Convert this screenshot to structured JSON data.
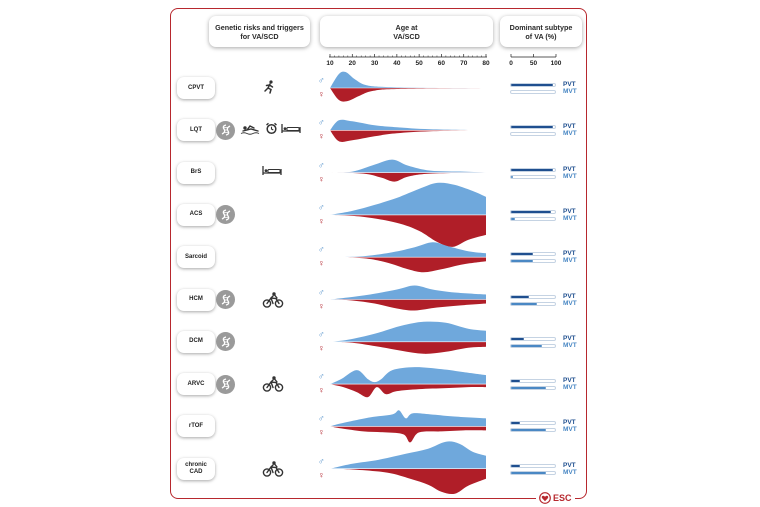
{
  "headers": {
    "genetic_line1": "Genetic risks and triggers",
    "genetic_line2": "for VA/SCD",
    "age_line1": "Age at",
    "age_line2": "VA/SCD",
    "subtype_line1": "Dominant subtype",
    "subtype_line2": "of VA (%)"
  },
  "age_axis": {
    "ticks": [
      "10",
      "20",
      "30",
      "40",
      "50",
      "60",
      "70",
      "80"
    ]
  },
  "subtype_axis": {
    "ticks": [
      "0",
      "50",
      "100"
    ]
  },
  "symbols": {
    "male": "♂",
    "female": "♀"
  },
  "bar_labels": {
    "pvt": "PVT",
    "mvt": "MVT"
  },
  "colors": {
    "male": "#6fa8dc",
    "female": "#b01e28",
    "pvt": "#1f4f8f",
    "mvt": "#4a88c4",
    "frame": "#b7282e"
  },
  "rows": [
    {
      "line1": "CPVT",
      "line2": "",
      "dna": false,
      "triggers": [
        "running-icon"
      ],
      "pvt": 95,
      "mvt": 0,
      "male": [
        [
          10,
          0
        ],
        [
          14,
          14
        ],
        [
          17,
          16
        ],
        [
          21,
          9
        ],
        [
          26,
          3
        ],
        [
          35,
          1
        ],
        [
          60,
          0
        ],
        [
          80,
          0
        ]
      ],
      "female": [
        [
          10,
          0
        ],
        [
          14,
          12
        ],
        [
          18,
          13
        ],
        [
          23,
          8
        ],
        [
          29,
          3
        ],
        [
          40,
          1
        ],
        [
          80,
          0
        ]
      ]
    },
    {
      "line1": "LQT",
      "line2": "",
      "dna": true,
      "triggers": [
        "swimmer-icon",
        "alarm-clock-icon",
        "bed-icon"
      ],
      "pvt": 95,
      "mvt": 0,
      "male": [
        [
          10,
          0
        ],
        [
          14,
          10
        ],
        [
          20,
          9
        ],
        [
          30,
          5
        ],
        [
          40,
          3
        ],
        [
          55,
          1
        ],
        [
          80,
          0
        ]
      ],
      "female": [
        [
          10,
          0
        ],
        [
          14,
          11
        ],
        [
          20,
          10
        ],
        [
          30,
          6
        ],
        [
          40,
          3
        ],
        [
          55,
          1
        ],
        [
          80,
          0
        ]
      ]
    },
    {
      "line1": "BrS",
      "line2": "",
      "dna": false,
      "triggers": [
        "bed-icon"
      ],
      "pvt": 95,
      "mvt": 5,
      "male": [
        [
          10,
          0
        ],
        [
          20,
          1
        ],
        [
          30,
          8
        ],
        [
          38,
          13
        ],
        [
          45,
          7
        ],
        [
          55,
          2
        ],
        [
          70,
          1
        ],
        [
          80,
          0
        ]
      ],
      "female": [
        [
          10,
          0
        ],
        [
          25,
          1
        ],
        [
          33,
          5
        ],
        [
          39,
          9
        ],
        [
          45,
          4
        ],
        [
          55,
          1
        ],
        [
          80,
          0
        ]
      ]
    },
    {
      "line1": "ACS",
      "line2": "",
      "dna": true,
      "triggers": [],
      "pvt": 90,
      "mvt": 8,
      "male": [
        [
          10,
          0
        ],
        [
          20,
          4
        ],
        [
          30,
          10
        ],
        [
          40,
          17
        ],
        [
          50,
          26
        ],
        [
          58,
          32
        ],
        [
          66,
          30
        ],
        [
          75,
          23
        ],
        [
          80,
          18
        ]
      ],
      "female": [
        [
          10,
          0
        ],
        [
          25,
          2
        ],
        [
          40,
          8
        ],
        [
          50,
          16
        ],
        [
          58,
          27
        ],
        [
          65,
          32
        ],
        [
          72,
          25
        ],
        [
          80,
          20
        ]
      ]
    },
    {
      "line1": "Sarcoid",
      "line2": "",
      "dna": false,
      "triggers": [],
      "pvt": 50,
      "mvt": 50,
      "male": [
        [
          10,
          0
        ],
        [
          25,
          1
        ],
        [
          38,
          5
        ],
        [
          48,
          10
        ],
        [
          56,
          15
        ],
        [
          63,
          11
        ],
        [
          72,
          6
        ],
        [
          80,
          4
        ]
      ],
      "female": [
        [
          10,
          0
        ],
        [
          25,
          1
        ],
        [
          35,
          5
        ],
        [
          45,
          12
        ],
        [
          52,
          15
        ],
        [
          60,
          12
        ],
        [
          70,
          7
        ],
        [
          80,
          4
        ]
      ]
    },
    {
      "line1": "HCM",
      "line2": "",
      "dna": true,
      "triggers": [
        "cyclist-icon"
      ],
      "pvt": 40,
      "mvt": 60,
      "male": [
        [
          10,
          0
        ],
        [
          18,
          2
        ],
        [
          28,
          5
        ],
        [
          40,
          10
        ],
        [
          48,
          14
        ],
        [
          56,
          10
        ],
        [
          66,
          7
        ],
        [
          80,
          5
        ]
      ],
      "female": [
        [
          10,
          0
        ],
        [
          20,
          1
        ],
        [
          30,
          4
        ],
        [
          40,
          9
        ],
        [
          48,
          11
        ],
        [
          58,
          8
        ],
        [
          68,
          6
        ],
        [
          80,
          4
        ]
      ]
    },
    {
      "line1": "DCM",
      "line2": "",
      "dna": true,
      "triggers": [],
      "pvt": 30,
      "mvt": 70,
      "male": [
        [
          10,
          0
        ],
        [
          18,
          2
        ],
        [
          30,
          8
        ],
        [
          42,
          16
        ],
        [
          52,
          20
        ],
        [
          62,
          19
        ],
        [
          72,
          13
        ],
        [
          80,
          11
        ]
      ],
      "female": [
        [
          10,
          0
        ],
        [
          20,
          1
        ],
        [
          32,
          5
        ],
        [
          42,
          9
        ],
        [
          52,
          12
        ],
        [
          62,
          10
        ],
        [
          72,
          6
        ],
        [
          80,
          5
        ]
      ]
    },
    {
      "line1": "ARVC",
      "line2": "",
      "dna": true,
      "triggers": [
        "cyclist-icon"
      ],
      "pvt": 20,
      "mvt": 80,
      "male": [
        [
          10,
          0
        ],
        [
          15,
          5
        ],
        [
          22,
          14
        ],
        [
          27,
          5
        ],
        [
          30,
          2
        ],
        [
          33,
          5
        ],
        [
          38,
          14
        ],
        [
          48,
          17
        ],
        [
          60,
          15
        ],
        [
          70,
          12
        ],
        [
          80,
          9
        ]
      ],
      "female": [
        [
          10,
          0
        ],
        [
          16,
          3
        ],
        [
          22,
          8
        ],
        [
          27,
          13
        ],
        [
          31,
          3
        ],
        [
          35,
          10
        ],
        [
          40,
          7
        ],
        [
          50,
          5
        ],
        [
          62,
          4
        ],
        [
          72,
          3
        ],
        [
          80,
          3
        ]
      ]
    },
    {
      "line1": "rTOF",
      "line2": "",
      "dna": false,
      "triggers": [],
      "pvt": 20,
      "mvt": 80,
      "male": [
        [
          10,
          0
        ],
        [
          15,
          3
        ],
        [
          28,
          9
        ],
        [
          38,
          12
        ],
        [
          41,
          16
        ],
        [
          44,
          8
        ],
        [
          47,
          13
        ],
        [
          55,
          12
        ],
        [
          65,
          10
        ],
        [
          80,
          8
        ]
      ],
      "female": [
        [
          10,
          0
        ],
        [
          15,
          2
        ],
        [
          25,
          5
        ],
        [
          35,
          6
        ],
        [
          43,
          8
        ],
        [
          46,
          16
        ],
        [
          50,
          6
        ],
        [
          60,
          5
        ],
        [
          70,
          4
        ],
        [
          80,
          4
        ]
      ]
    },
    {
      "line1": "chronic",
      "line2": "CAD",
      "dna": false,
      "triggers": [
        "cyclist-icon"
      ],
      "pvt": 20,
      "mvt": 80,
      "male": [
        [
          10,
          0
        ],
        [
          20,
          5
        ],
        [
          32,
          9
        ],
        [
          44,
          15
        ],
        [
          54,
          20
        ],
        [
          62,
          27
        ],
        [
          68,
          25
        ],
        [
          74,
          17
        ],
        [
          80,
          13
        ]
      ],
      "female": [
        [
          10,
          0
        ],
        [
          22,
          1
        ],
        [
          36,
          4
        ],
        [
          46,
          10
        ],
        [
          54,
          16
        ],
        [
          60,
          23
        ],
        [
          66,
          25
        ],
        [
          72,
          17
        ],
        [
          80,
          10
        ]
      ]
    }
  ],
  "logo": {
    "text": "ESC"
  }
}
